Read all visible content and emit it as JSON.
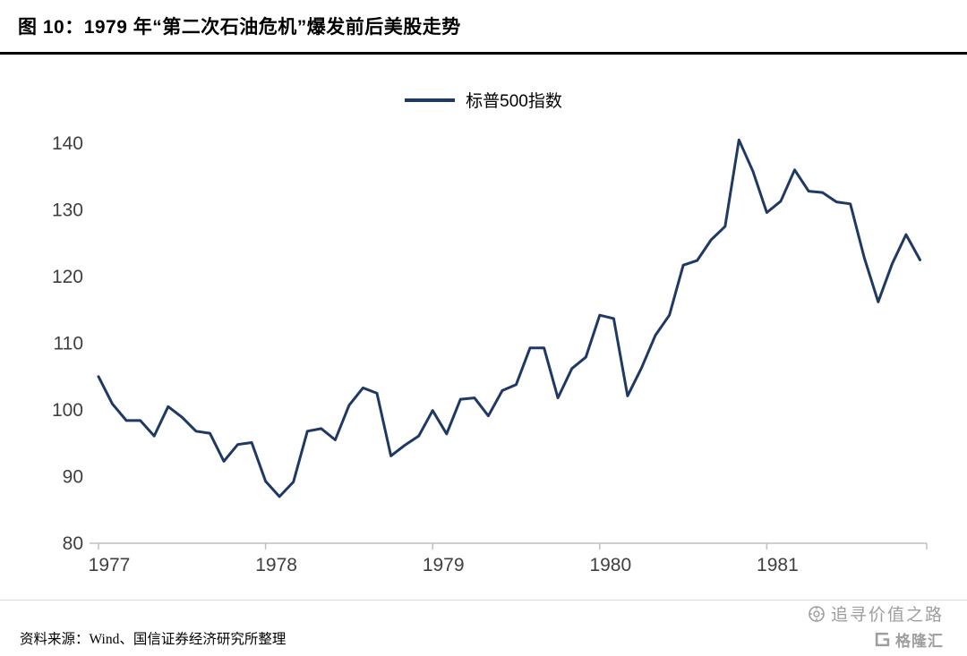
{
  "header": {
    "title": "图 10：1979 年“第二次石油危机”爆发前后美股走势"
  },
  "legend": {
    "label": "标普500指数"
  },
  "footer": {
    "source": "资料来源：Wind、国信证券经济研究所整理",
    "watermark_text": "追寻价值之路",
    "logo_text": "格隆汇"
  },
  "chart_data": {
    "type": "line",
    "title": "图 10：1979 年“第二次石油危机”爆发前后美股走势",
    "legend_entries": [
      "标普500指数"
    ],
    "legend_position": "top-center",
    "grid": false,
    "frequency": "monthly",
    "x_start": "1977-01",
    "x_end": "1981-12",
    "x_tick_labels": [
      "1977",
      "1978",
      "1979",
      "1980",
      "1981"
    ],
    "y_ticks": [
      80,
      90,
      100,
      110,
      120,
      130,
      140
    ],
    "ylim": [
      80,
      145
    ],
    "line_color": "#1f3864",
    "axis_color": "#bfbfbf",
    "series": [
      {
        "name": "标普500指数",
        "color": "#1f3864",
        "values": [
          105.0,
          100.9,
          98.4,
          98.4,
          96.1,
          100.5,
          98.9,
          96.8,
          96.5,
          92.3,
          94.8,
          95.1,
          89.3,
          87.0,
          89.2,
          96.8,
          97.2,
          95.5,
          100.7,
          103.3,
          102.5,
          93.1,
          94.7,
          96.1,
          99.9,
          96.4,
          101.6,
          101.8,
          99.1,
          102.9,
          103.8,
          109.3,
          109.3,
          101.8,
          106.2,
          107.9,
          114.2,
          113.7,
          102.1,
          106.3,
          111.2,
          114.2,
          121.7,
          122.4,
          125.5,
          127.5,
          140.5,
          135.8,
          129.6,
          131.3,
          136.0,
          132.8,
          132.6,
          131.2,
          130.9,
          122.8,
          116.2,
          121.9,
          126.3,
          122.5
        ]
      }
    ]
  }
}
